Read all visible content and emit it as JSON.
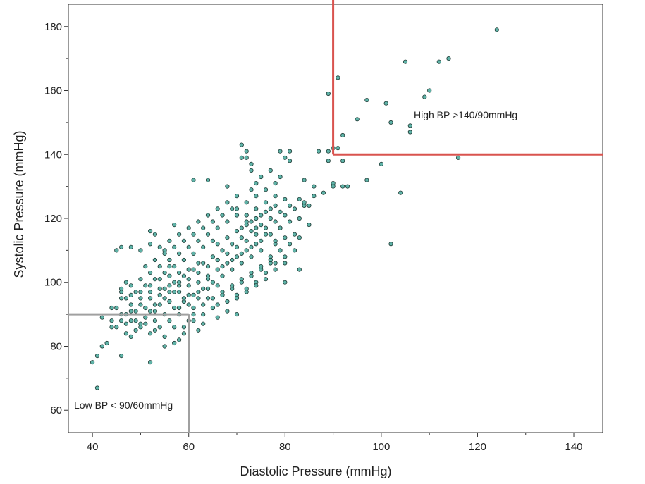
{
  "chart_data": {
    "type": "scatter",
    "xlabel": "Diastolic Pressure (mmHg)",
    "ylabel": "Systolic Pressure (mmHg)",
    "xlim": [
      35,
      146
    ],
    "ylim": [
      53,
      187
    ],
    "x_ticks": [
      "40",
      "60",
      "80",
      "100",
      "120",
      "140"
    ],
    "y_ticks": [
      "60",
      "80",
      "100",
      "120",
      "140",
      "160",
      "180"
    ],
    "x_tick_values": [
      40,
      60,
      80,
      100,
      120,
      140
    ],
    "y_tick_values": [
      60,
      80,
      100,
      120,
      140,
      160,
      180
    ],
    "point_color": "#5fb3a8",
    "high_line_color": "#d9534f",
    "low_line_color": "#a0a0a0",
    "annotations": {
      "high": "High BP >140/90mmHg",
      "low": "Low BP < 90/60mmHg"
    },
    "thresholds": {
      "high": {
        "diastolic": 90,
        "systolic": 140
      },
      "low": {
        "diastolic": 60,
        "systolic": 90
      }
    },
    "points": [
      [
        124,
        179
      ],
      [
        114,
        170
      ],
      [
        112,
        169
      ],
      [
        105,
        169
      ],
      [
        91,
        164
      ],
      [
        110,
        160
      ],
      [
        109,
        158
      ],
      [
        89,
        159
      ],
      [
        97,
        157
      ],
      [
        101,
        156
      ],
      [
        95,
        151
      ],
      [
        102,
        150
      ],
      [
        106,
        149
      ],
      [
        106,
        147
      ],
      [
        92,
        146
      ],
      [
        90,
        142
      ],
      [
        91,
        142
      ],
      [
        89,
        141
      ],
      [
        87,
        141
      ],
      [
        116,
        139
      ],
      [
        89,
        138
      ],
      [
        92,
        138
      ],
      [
        100,
        137
      ],
      [
        97,
        132
      ],
      [
        92,
        130
      ],
      [
        93,
        130
      ],
      [
        90,
        131
      ],
      [
        90,
        130
      ],
      [
        104,
        128
      ],
      [
        102,
        112
      ],
      [
        84,
        124
      ],
      [
        80,
        100
      ],
      [
        79,
        117
      ],
      [
        83,
        104
      ],
      [
        78,
        112
      ],
      [
        77,
        108
      ],
      [
        71,
        143
      ],
      [
        72,
        141
      ],
      [
        72,
        139
      ],
      [
        71,
        139
      ],
      [
        79,
        141
      ],
      [
        80,
        139
      ],
      [
        81,
        141
      ],
      [
        81,
        138
      ],
      [
        73,
        137
      ],
      [
        64,
        132
      ],
      [
        61,
        132
      ],
      [
        68,
        130
      ],
      [
        73,
        129
      ],
      [
        74,
        131
      ],
      [
        78,
        131
      ],
      [
        84,
        132
      ],
      [
        86,
        130
      ],
      [
        88,
        128
      ],
      [
        83,
        126
      ],
      [
        85,
        124
      ],
      [
        46,
        111
      ],
      [
        48,
        111
      ],
      [
        50,
        110
      ],
      [
        52,
        112
      ],
      [
        55,
        110
      ],
      [
        57,
        118
      ],
      [
        53,
        115
      ],
      [
        52,
        116
      ],
      [
        45,
        110
      ],
      [
        47,
        100
      ],
      [
        46,
        98
      ],
      [
        48,
        96
      ],
      [
        44,
        92
      ],
      [
        46,
        95
      ],
      [
        42,
        89
      ],
      [
        44,
        86
      ],
      [
        43,
        81
      ],
      [
        42,
        80
      ],
      [
        41,
        77
      ],
      [
        40,
        75
      ],
      [
        41,
        67
      ],
      [
        52,
        75
      ],
      [
        46,
        77
      ],
      [
        55,
        80
      ],
      [
        62,
        85
      ],
      [
        63,
        87
      ],
      [
        66,
        89
      ],
      [
        70,
        90
      ],
      [
        58,
        82
      ],
      [
        59,
        84
      ],
      [
        57,
        86
      ],
      [
        60,
        88
      ],
      [
        61,
        90
      ],
      [
        58,
        92
      ],
      [
        56,
        94
      ],
      [
        54,
        96
      ],
      [
        53,
        93
      ],
      [
        52,
        91
      ],
      [
        51,
        89
      ],
      [
        50,
        87
      ],
      [
        49,
        85
      ],
      [
        48,
        83
      ],
      [
        47,
        84
      ],
      [
        49,
        88
      ],
      [
        47,
        90
      ],
      [
        45,
        86
      ],
      [
        44,
        88
      ],
      [
        46,
        90
      ],
      [
        68,
        94
      ],
      [
        70,
        96
      ],
      [
        72,
        98
      ],
      [
        74,
        100
      ],
      [
        76,
        103
      ],
      [
        78,
        106
      ],
      [
        80,
        108
      ],
      [
        82,
        110
      ],
      [
        75,
        110
      ],
      [
        73,
        108
      ],
      [
        71,
        106
      ],
      [
        69,
        104
      ],
      [
        67,
        102
      ],
      [
        65,
        100
      ],
      [
        63,
        98
      ],
      [
        61,
        96
      ],
      [
        59,
        94
      ],
      [
        57,
        92
      ],
      [
        55,
        90
      ],
      [
        53,
        88
      ],
      [
        51,
        92
      ],
      [
        55,
        98
      ],
      [
        57,
        100
      ],
      [
        59,
        102
      ],
      [
        61,
        104
      ],
      [
        63,
        106
      ],
      [
        65,
        108
      ],
      [
        67,
        110
      ],
      [
        69,
        112
      ],
      [
        71,
        114
      ],
      [
        73,
        116
      ],
      [
        75,
        118
      ],
      [
        77,
        120
      ],
      [
        79,
        122
      ],
      [
        81,
        124
      ],
      [
        83,
        120
      ],
      [
        85,
        118
      ],
      [
        82,
        115
      ],
      [
        80,
        114
      ],
      [
        78,
        113
      ],
      [
        76,
        115
      ],
      [
        74,
        117
      ],
      [
        72,
        119
      ],
      [
        70,
        121
      ],
      [
        68,
        119
      ],
      [
        66,
        117
      ],
      [
        64,
        115
      ],
      [
        62,
        113
      ],
      [
        60,
        111
      ],
      [
        58,
        109
      ],
      [
        56,
        107
      ],
      [
        54,
        105
      ],
      [
        52,
        103
      ],
      [
        50,
        101
      ],
      [
        48,
        99
      ],
      [
        50,
        97
      ],
      [
        52,
        95
      ],
      [
        54,
        93
      ],
      [
        56,
        97
      ],
      [
        58,
        99
      ],
      [
        60,
        101
      ],
      [
        62,
        103
      ],
      [
        64,
        105
      ],
      [
        66,
        107
      ],
      [
        68,
        109
      ],
      [
        70,
        111
      ],
      [
        72,
        113
      ],
      [
        74,
        115
      ],
      [
        76,
        117
      ],
      [
        78,
        119
      ],
      [
        80,
        121
      ],
      [
        82,
        123
      ],
      [
        84,
        125
      ],
      [
        86,
        127
      ],
      [
        78,
        127
      ],
      [
        76,
        125
      ],
      [
        74,
        123
      ],
      [
        72,
        121
      ],
      [
        70,
        123
      ],
      [
        68,
        125
      ],
      [
        66,
        123
      ],
      [
        64,
        121
      ],
      [
        62,
        119
      ],
      [
        60,
        117
      ],
      [
        58,
        115
      ],
      [
        56,
        113
      ],
      [
        54,
        111
      ],
      [
        56,
        105
      ],
      [
        58,
        103
      ],
      [
        60,
        99
      ],
      [
        62,
        97
      ],
      [
        64,
        95
      ],
      [
        66,
        93
      ],
      [
        68,
        91
      ],
      [
        70,
        95
      ],
      [
        72,
        97
      ],
      [
        74,
        99
      ],
      [
        76,
        101
      ],
      [
        78,
        104
      ],
      [
        80,
        106
      ],
      [
        66,
        99
      ],
      [
        64,
        101
      ],
      [
        62,
        95
      ],
      [
        60,
        93
      ],
      [
        58,
        97
      ],
      [
        56,
        99
      ],
      [
        54,
        101
      ],
      [
        52,
        99
      ],
      [
        50,
        95
      ],
      [
        48,
        93
      ],
      [
        46,
        97
      ],
      [
        48,
        91
      ],
      [
        53,
        85
      ],
      [
        55,
        83
      ],
      [
        57,
        81
      ],
      [
        59,
        86
      ],
      [
        61,
        88
      ],
      [
        63,
        90
      ],
      [
        65,
        92
      ],
      [
        67,
        96
      ],
      [
        69,
        98
      ],
      [
        71,
        100
      ],
      [
        73,
        102
      ],
      [
        75,
        104
      ],
      [
        77,
        106
      ],
      [
        79,
        110
      ],
      [
        81,
        112
      ],
      [
        83,
        114
      ],
      [
        72,
        125
      ],
      [
        70,
        127
      ],
      [
        74,
        127
      ],
      [
        76,
        129
      ],
      [
        75,
        133
      ],
      [
        73,
        135
      ],
      [
        77,
        135
      ],
      [
        79,
        133
      ],
      [
        65,
        113
      ],
      [
        63,
        111
      ],
      [
        61,
        109
      ],
      [
        59,
        107
      ],
      [
        57,
        105
      ],
      [
        55,
        103
      ],
      [
        53,
        101
      ],
      [
        51,
        99
      ],
      [
        49,
        97
      ],
      [
        47,
        95
      ],
      [
        51,
        105
      ],
      [
        53,
        107
      ],
      [
        55,
        109
      ],
      [
        57,
        111
      ],
      [
        59,
        113
      ],
      [
        61,
        115
      ],
      [
        63,
        117
      ],
      [
        65,
        119
      ],
      [
        67,
        121
      ],
      [
        69,
        123
      ],
      [
        71,
        117
      ],
      [
        73,
        119
      ],
      [
        75,
        121
      ],
      [
        77,
        123
      ],
      [
        60,
        96
      ],
      [
        62,
        100
      ],
      [
        64,
        98
      ],
      [
        66,
        104
      ],
      [
        68,
        106
      ],
      [
        70,
        108
      ],
      [
        72,
        110
      ],
      [
        74,
        112
      ],
      [
        58,
        90
      ],
      [
        56,
        88
      ],
      [
        54,
        86
      ],
      [
        52,
        84
      ],
      [
        50,
        86
      ],
      [
        48,
        88
      ],
      [
        46,
        88
      ],
      [
        45,
        92
      ],
      [
        66,
        112
      ],
      [
        68,
        114
      ],
      [
        70,
        116
      ],
      [
        72,
        118
      ],
      [
        74,
        120
      ],
      [
        76,
        122
      ],
      [
        78,
        124
      ],
      [
        80,
        126
      ],
      [
        64,
        102
      ],
      [
        62,
        106
      ],
      [
        60,
        104
      ],
      [
        58,
        100
      ],
      [
        56,
        102
      ],
      [
        54,
        98
      ],
      [
        52,
        97
      ],
      [
        50,
        93
      ],
      [
        67,
        105
      ],
      [
        69,
        107
      ],
      [
        71,
        109
      ],
      [
        73,
        111
      ],
      [
        75,
        113
      ],
      [
        77,
        115
      ],
      [
        79,
        117
      ],
      [
        81,
        119
      ],
      [
        63,
        93
      ],
      [
        65,
        95
      ],
      [
        67,
        97
      ],
      [
        69,
        99
      ],
      [
        71,
        101
      ],
      [
        73,
        103
      ],
      [
        75,
        105
      ],
      [
        77,
        107
      ],
      [
        61,
        92
      ],
      [
        59,
        95
      ],
      [
        57,
        97
      ],
      [
        55,
        95
      ],
      [
        53,
        91
      ],
      [
        51,
        87
      ],
      [
        49,
        91
      ],
      [
        47,
        87
      ]
    ]
  }
}
